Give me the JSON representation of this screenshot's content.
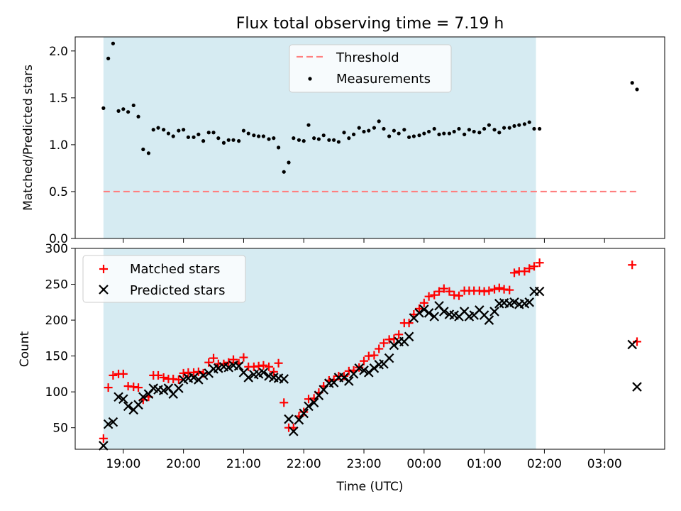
{
  "chart_data": [
    {
      "type": "scatter",
      "title": "Flux total observing time = 7.19 h",
      "xlabel": "",
      "ylabel": "Matched/Predicted stars",
      "ylim": [
        0,
        2.15
      ],
      "yticks": [
        0.0,
        0.5,
        1.0,
        1.5,
        2.0
      ],
      "ytick_labels": [
        "0.0",
        "0.5",
        "1.0",
        "1.5",
        "2.0"
      ],
      "shaded_span_hours": [
        18.67,
        25.86
      ],
      "shade_color": "#add8e6",
      "legend_position": "top-center",
      "threshold": {
        "name": "Threshold",
        "value": 0.5,
        "x_range_hours": [
          18.67,
          27.54
        ],
        "color": "#ff7f7f"
      },
      "series": [
        {
          "name": "Measurements",
          "color": "#000000",
          "x_hours": [
            18.67,
            18.75,
            18.83,
            18.92,
            19.0,
            19.08,
            19.17,
            19.25,
            19.33,
            19.42,
            19.5,
            19.58,
            19.67,
            19.75,
            19.83,
            19.92,
            20.0,
            20.08,
            20.17,
            20.25,
            20.33,
            20.42,
            20.5,
            20.58,
            20.67,
            20.75,
            20.83,
            20.92,
            21.0,
            21.08,
            21.17,
            21.25,
            21.33,
            21.42,
            21.5,
            21.58,
            21.67,
            21.75,
            21.83,
            21.92,
            22.0,
            22.08,
            22.17,
            22.25,
            22.33,
            22.42,
            22.5,
            22.58,
            22.67,
            22.75,
            22.83,
            22.92,
            23.0,
            23.08,
            23.17,
            23.25,
            23.33,
            23.42,
            23.5,
            23.58,
            23.67,
            23.75,
            23.83,
            23.92,
            24.0,
            24.08,
            24.17,
            24.25,
            24.33,
            24.42,
            24.5,
            24.58,
            24.67,
            24.75,
            24.83,
            24.92,
            25.0,
            25.08,
            25.17,
            25.25,
            25.33,
            25.42,
            25.5,
            25.58,
            25.67,
            25.75,
            25.83,
            25.92,
            27.46,
            27.54
          ],
          "y": [
            1.39,
            1.92,
            2.08,
            1.36,
            1.38,
            1.35,
            1.42,
            1.3,
            0.95,
            0.91,
            1.16,
            1.18,
            1.16,
            1.12,
            1.09,
            1.15,
            1.16,
            1.08,
            1.08,
            1.11,
            1.04,
            1.13,
            1.13,
            1.07,
            1.02,
            1.05,
            1.05,
            1.04,
            1.15,
            1.12,
            1.1,
            1.09,
            1.09,
            1.06,
            1.07,
            0.97,
            0.71,
            0.81,
            1.07,
            1.05,
            1.04,
            1.21,
            1.07,
            1.06,
            1.1,
            1.05,
            1.05,
            1.03,
            1.13,
            1.07,
            1.11,
            1.18,
            1.14,
            1.15,
            1.18,
            1.25,
            1.17,
            1.09,
            1.15,
            1.12,
            1.16,
            1.08,
            1.09,
            1.1,
            1.12,
            1.14,
            1.17,
            1.11,
            1.12,
            1.12,
            1.14,
            1.17,
            1.11,
            1.16,
            1.14,
            1.13,
            1.17,
            1.21,
            1.16,
            1.13,
            1.18,
            1.18,
            1.2,
            1.21,
            1.22,
            1.24,
            1.17,
            1.17,
            1.66,
            1.59
          ]
        }
      ]
    },
    {
      "type": "scatter",
      "title": "",
      "xlabel": "Time (UTC)",
      "ylabel": "Count",
      "ylim": [
        20,
        300
      ],
      "yticks": [
        50,
        100,
        150,
        200,
        250,
        300
      ],
      "ytick_labels": [
        "50",
        "100",
        "150",
        "200",
        "250",
        "300"
      ],
      "xticks_hours": [
        19,
        20,
        21,
        22,
        23,
        24,
        25,
        26,
        27
      ],
      "xtick_labels": [
        "19:00",
        "20:00",
        "21:00",
        "22:00",
        "23:00",
        "00:00",
        "01:00",
        "02:00",
        "03:00"
      ],
      "shaded_span_hours": [
        18.67,
        25.86
      ],
      "shade_color": "#add8e6",
      "legend_position": "top-left",
      "series": [
        {
          "name": "Matched stars",
          "marker": "plus",
          "color": "#ff0000",
          "x_hours": [
            18.67,
            18.75,
            18.83,
            18.92,
            19.0,
            19.08,
            19.17,
            19.25,
            19.33,
            19.42,
            19.5,
            19.58,
            19.67,
            19.75,
            19.83,
            19.92,
            20.0,
            20.08,
            20.17,
            20.25,
            20.33,
            20.42,
            20.5,
            20.58,
            20.67,
            20.75,
            20.83,
            20.92,
            21.0,
            21.08,
            21.17,
            21.25,
            21.33,
            21.42,
            21.5,
            21.58,
            21.67,
            21.75,
            21.83,
            21.92,
            22.0,
            22.08,
            22.17,
            22.25,
            22.33,
            22.42,
            22.5,
            22.58,
            22.67,
            22.75,
            22.83,
            22.92,
            23.0,
            23.08,
            23.17,
            23.25,
            23.33,
            23.42,
            23.5,
            23.58,
            23.67,
            23.75,
            23.83,
            23.92,
            24.0,
            24.08,
            24.17,
            24.25,
            24.33,
            24.42,
            24.5,
            24.58,
            24.67,
            24.75,
            24.83,
            24.92,
            25.0,
            25.08,
            25.17,
            25.25,
            25.33,
            25.42,
            25.5,
            25.58,
            25.67,
            25.75,
            25.83,
            25.92,
            27.46,
            27.54
          ],
          "y": [
            35,
            106,
            123,
            125,
            125,
            108,
            107,
            106,
            89,
            93,
            123,
            123,
            120,
            118,
            118,
            117,
            126,
            127,
            127,
            128,
            126,
            141,
            147,
            139,
            139,
            141,
            145,
            140,
            148,
            135,
            135,
            136,
            137,
            135,
            128,
            140,
            85,
            50,
            50,
            66,
            72,
            90,
            91,
            99,
            108,
            116,
            117,
            122,
            122,
            129,
            130,
            134,
            143,
            150,
            151,
            160,
            168,
            173,
            174,
            180,
            196,
            196,
            208,
            216,
            224,
            233,
            235,
            240,
            244,
            240,
            235,
            234,
            241,
            241,
            241,
            241,
            240,
            241,
            243,
            245,
            243,
            242,
            266,
            268,
            268,
            272,
            275,
            280,
            277,
            170
          ]
        },
        {
          "name": "Predicted stars",
          "marker": "x",
          "color": "#000000",
          "x_hours": [
            18.67,
            18.75,
            18.83,
            18.92,
            19.0,
            19.08,
            19.17,
            19.25,
            19.33,
            19.42,
            19.5,
            19.58,
            19.67,
            19.75,
            19.83,
            19.92,
            20.0,
            20.08,
            20.17,
            20.25,
            20.33,
            20.42,
            20.5,
            20.58,
            20.67,
            20.75,
            20.83,
            20.92,
            21.0,
            21.08,
            21.17,
            21.25,
            21.33,
            21.42,
            21.5,
            21.58,
            21.67,
            21.75,
            21.83,
            21.92,
            22.0,
            22.08,
            22.17,
            22.25,
            22.33,
            22.42,
            22.5,
            22.58,
            22.67,
            22.75,
            22.83,
            22.92,
            23.0,
            23.08,
            23.17,
            23.25,
            23.33,
            23.42,
            23.5,
            23.58,
            23.67,
            23.75,
            23.83,
            23.92,
            24.0,
            24.08,
            24.17,
            24.25,
            24.33,
            24.42,
            24.5,
            24.58,
            24.67,
            24.75,
            24.83,
            24.92,
            25.0,
            25.08,
            25.17,
            25.25,
            25.33,
            25.42,
            25.5,
            25.58,
            25.67,
            25.75,
            25.83,
            25.92,
            27.46,
            27.54
          ],
          "y": [
            25,
            55,
            58,
            93,
            90,
            80,
            75,
            82,
            93,
            97,
            105,
            103,
            102,
            105,
            97,
            105,
            117,
            119,
            120,
            117,
            123,
            126,
            132,
            133,
            135,
            134,
            137,
            136,
            127,
            120,
            124,
            125,
            127,
            122,
            120,
            119,
            118,
            62,
            45,
            61,
            70,
            80,
            85,
            95,
            103,
            112,
            113,
            120,
            120,
            115,
            125,
            133,
            130,
            127,
            133,
            138,
            139,
            147,
            165,
            170,
            170,
            177,
            203,
            210,
            215,
            210,
            205,
            220,
            212,
            208,
            207,
            205,
            212,
            205,
            207,
            214,
            207,
            200,
            212,
            223,
            224,
            223,
            225,
            222,
            223,
            225,
            240,
            240,
            166,
            107
          ]
        }
      ]
    }
  ]
}
